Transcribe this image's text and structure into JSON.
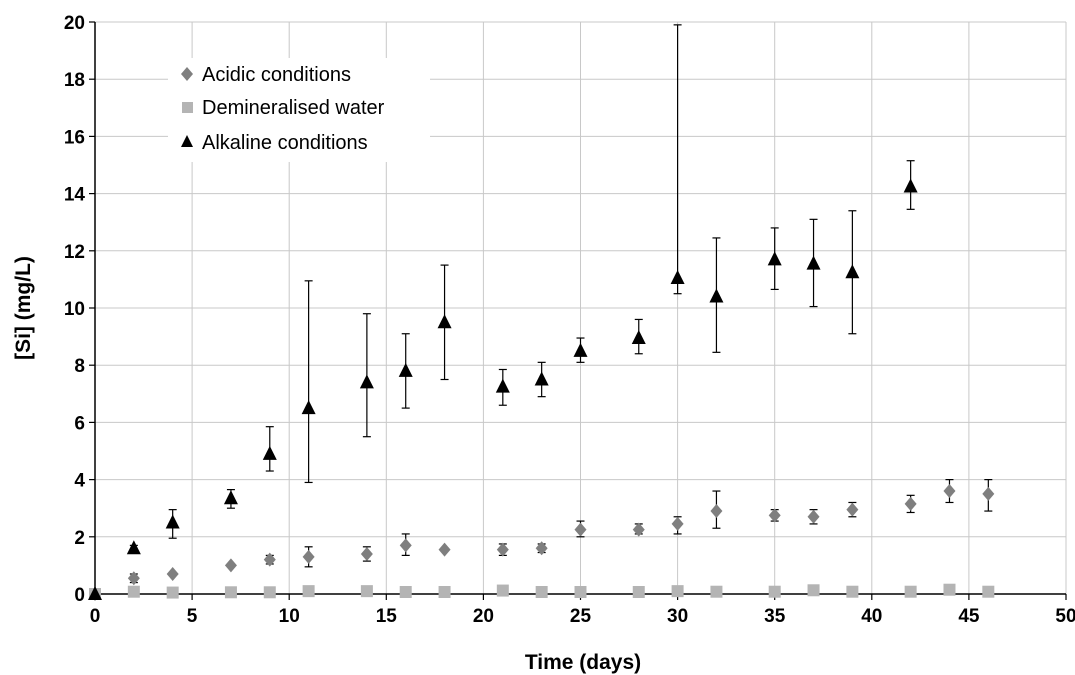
{
  "chart_data": {
    "type": "scatter",
    "xlabel": "Time (days)",
    "ylabel": "[Si] (mg/L)",
    "xlim": [
      0,
      50
    ],
    "ylim": [
      0,
      20
    ],
    "xticks": [
      0,
      5,
      10,
      15,
      20,
      25,
      30,
      35,
      40,
      45,
      50
    ],
    "yticks": [
      0,
      2,
      4,
      6,
      8,
      10,
      12,
      14,
      16,
      18,
      20
    ],
    "grid": true,
    "legend_position": "top-left",
    "series": [
      {
        "name": "Acidic conditions",
        "marker": "diamond",
        "color": "#7f7f7f",
        "points": [
          {
            "x": 0,
            "y": 0.0
          },
          {
            "x": 2,
            "y": 0.55,
            "err_low": 0.4,
            "err_high": 0.7
          },
          {
            "x": 4,
            "y": 0.7
          },
          {
            "x": 7,
            "y": 1.0
          },
          {
            "x": 9,
            "y": 1.2,
            "err_low": 1.05,
            "err_high": 1.35
          },
          {
            "x": 11,
            "y": 1.3,
            "err_low": 0.95,
            "err_high": 1.65
          },
          {
            "x": 14,
            "y": 1.4,
            "err_low": 1.15,
            "err_high": 1.65
          },
          {
            "x": 16,
            "y": 1.7,
            "err_low": 1.35,
            "err_high": 2.1
          },
          {
            "x": 18,
            "y": 1.55
          },
          {
            "x": 21,
            "y": 1.55,
            "err_low": 1.35,
            "err_high": 1.75
          },
          {
            "x": 23,
            "y": 1.6,
            "err_low": 1.45,
            "err_high": 1.75
          },
          {
            "x": 25,
            "y": 2.25,
            "err_low": 2.0,
            "err_high": 2.55
          },
          {
            "x": 28,
            "y": 2.25,
            "err_low": 2.1,
            "err_high": 2.45
          },
          {
            "x": 30,
            "y": 2.45,
            "err_low": 2.1,
            "err_high": 2.7
          },
          {
            "x": 32,
            "y": 2.9,
            "err_low": 2.3,
            "err_high": 3.6
          },
          {
            "x": 35,
            "y": 2.75,
            "err_low": 2.55,
            "err_high": 2.95
          },
          {
            "x": 37,
            "y": 2.7,
            "err_low": 2.45,
            "err_high": 2.95
          },
          {
            "x": 39,
            "y": 2.95,
            "err_low": 2.7,
            "err_high": 3.2
          },
          {
            "x": 42,
            "y": 3.15,
            "err_low": 2.85,
            "err_high": 3.45
          },
          {
            "x": 44,
            "y": 3.6,
            "err_low": 3.2,
            "err_high": 4.0
          },
          {
            "x": 46,
            "y": 3.5,
            "err_low": 2.9,
            "err_high": 4.0
          }
        ]
      },
      {
        "name": "Demineralised water",
        "marker": "square",
        "color": "#b4b4b4",
        "points": [
          {
            "x": 0,
            "y": 0.0
          },
          {
            "x": 2,
            "y": 0.08
          },
          {
            "x": 4,
            "y": 0.05
          },
          {
            "x": 7,
            "y": 0.06
          },
          {
            "x": 9,
            "y": 0.06
          },
          {
            "x": 11,
            "y": 0.1
          },
          {
            "x": 14,
            "y": 0.1
          },
          {
            "x": 16,
            "y": 0.07
          },
          {
            "x": 18,
            "y": 0.07
          },
          {
            "x": 21,
            "y": 0.12
          },
          {
            "x": 23,
            "y": 0.07
          },
          {
            "x": 25,
            "y": 0.07
          },
          {
            "x": 28,
            "y": 0.07
          },
          {
            "x": 30,
            "y": 0.1
          },
          {
            "x": 32,
            "y": 0.08
          },
          {
            "x": 35,
            "y": 0.08
          },
          {
            "x": 37,
            "y": 0.13
          },
          {
            "x": 39,
            "y": 0.08
          },
          {
            "x": 42,
            "y": 0.08
          },
          {
            "x": 44,
            "y": 0.15
          },
          {
            "x": 46,
            "y": 0.08
          }
        ]
      },
      {
        "name": "Alkaline conditions",
        "marker": "triangle",
        "color": "#000000",
        "points": [
          {
            "x": 0,
            "y": 0.0
          },
          {
            "x": 2,
            "y": 1.6,
            "err_low": 1.5,
            "err_high": 1.7
          },
          {
            "x": 4,
            "y": 2.5,
            "err_low": 1.95,
            "err_high": 2.95
          },
          {
            "x": 7,
            "y": 3.35,
            "err_low": 3.0,
            "err_high": 3.65
          },
          {
            "x": 9,
            "y": 4.9,
            "err_low": 4.3,
            "err_high": 5.85
          },
          {
            "x": 11,
            "y": 6.5,
            "err_low": 3.9,
            "err_high": 10.95
          },
          {
            "x": 14,
            "y": 7.4,
            "err_low": 5.5,
            "err_high": 9.8
          },
          {
            "x": 16,
            "y": 7.8,
            "err_low": 6.5,
            "err_high": 9.1
          },
          {
            "x": 18,
            "y": 9.5,
            "err_low": 7.5,
            "err_high": 11.5
          },
          {
            "x": 21,
            "y": 7.25,
            "err_low": 6.6,
            "err_high": 7.85
          },
          {
            "x": 23,
            "y": 7.5,
            "err_low": 6.9,
            "err_high": 8.1
          },
          {
            "x": 25,
            "y": 8.5,
            "err_low": 8.1,
            "err_high": 8.95
          },
          {
            "x": 28,
            "y": 8.95,
            "err_low": 8.4,
            "err_high": 9.6
          },
          {
            "x": 30,
            "y": 11.05,
            "err_low": 10.5,
            "err_high": 19.9
          },
          {
            "x": 32,
            "y": 10.4,
            "err_low": 8.45,
            "err_high": 12.45
          },
          {
            "x": 35,
            "y": 11.7,
            "err_low": 10.65,
            "err_high": 12.8
          },
          {
            "x": 37,
            "y": 11.55,
            "err_low": 10.05,
            "err_high": 13.1
          },
          {
            "x": 39,
            "y": 11.25,
            "err_low": 9.1,
            "err_high": 13.4
          },
          {
            "x": 42,
            "y": 14.25,
            "err_low": 13.45,
            "err_high": 15.15
          }
        ]
      }
    ]
  }
}
